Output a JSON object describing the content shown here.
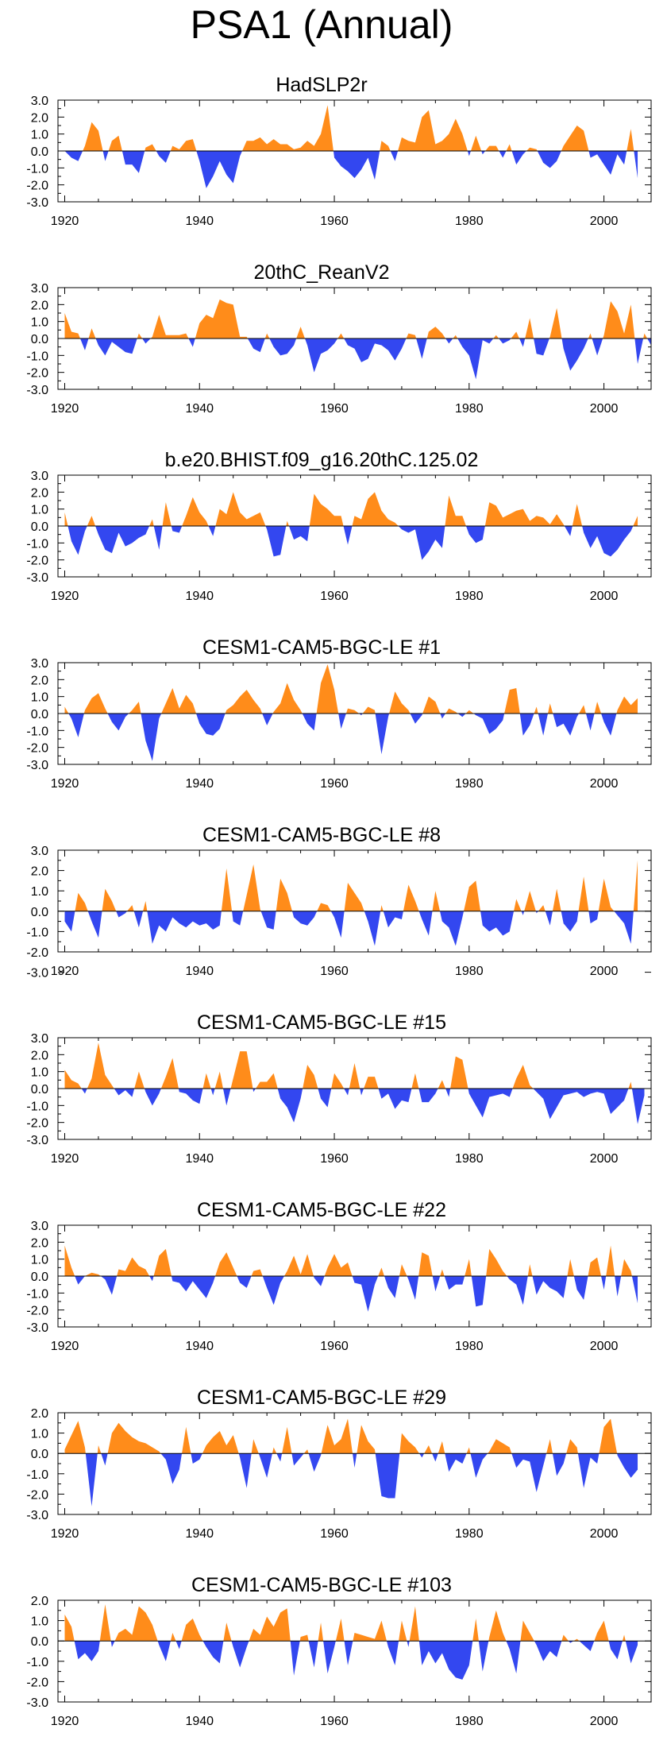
{
  "title": "PSA1 (Annual)",
  "colors": {
    "positive": "#ff8c1a",
    "negative": "#3347f0"
  },
  "chart_data": [
    {
      "type": "area",
      "title": "HadSLP2r",
      "x_start": 1920,
      "x_end": 2005,
      "xticks": [
        "1920",
        "1940",
        "1960",
        "1980",
        "2000"
      ],
      "xlim": [
        1919,
        2007
      ],
      "yticks": [
        "3.0",
        "2.0",
        "1.0",
        "0.0",
        "-1.0",
        "-2.0",
        "-3.0"
      ],
      "ylim": [
        -3.0,
        3.0
      ],
      "values": [
        0,
        -0.4,
        -0.6,
        0.3,
        1.7,
        1.2,
        -0.6,
        0.6,
        0.9,
        -0.8,
        -0.8,
        -1.3,
        0.2,
        0.4,
        -0.3,
        -0.7,
        0.3,
        0.1,
        0.6,
        0.7,
        -0.6,
        -2.2,
        -1.5,
        -0.6,
        -1.4,
        -1.9,
        -0.3,
        0.6,
        0.6,
        0.8,
        0.4,
        0.7,
        0.4,
        0.4,
        0.1,
        0.2,
        0.6,
        0.3,
        1.0,
        2.7,
        -0.4,
        -0.9,
        -1.2,
        -1.6,
        -1.1,
        -0.4,
        -1.7,
        0.6,
        0.3,
        -0.6,
        0.8,
        0.6,
        0.5,
        2.0,
        2.4,
        0.4,
        0.6,
        1.0,
        1.9,
        1.0,
        -0.3,
        0.9,
        -0.2,
        0.3,
        0.3,
        -0.4,
        0.4,
        -0.8,
        -0.2,
        0.2,
        0.1,
        -0.7,
        -1.0,
        -0.6,
        0.3,
        0.9,
        1.5,
        1.2,
        -0.4,
        -0.2,
        -0.8,
        -1.4,
        -0.2,
        -0.8,
        1.3,
        -1.6
      ]
    },
    {
      "type": "area",
      "title": "20thC_ReanV2",
      "x_start": 1920,
      "x_end": 2005,
      "xticks": [
        "1920",
        "1940",
        "1960",
        "1980",
        "2000"
      ],
      "xlim": [
        1919,
        2007
      ],
      "yticks": [
        "3.0",
        "2.0",
        "1.0",
        "0.0",
        "-1.0",
        "-2.0",
        "-3.0"
      ],
      "ylim": [
        -3.0,
        3.0
      ],
      "values": [
        1.5,
        0.4,
        0.3,
        -0.7,
        0.6,
        -0.4,
        -1.0,
        -0.2,
        -0.5,
        -0.8,
        -0.9,
        0.3,
        -0.3,
        0.1,
        1.4,
        0.2,
        0.2,
        0.2,
        0.3,
        -0.5,
        0.9,
        1.4,
        1.2,
        2.3,
        2.1,
        2.0,
        0.1,
        0.1,
        -0.6,
        -0.8,
        0.3,
        -0.5,
        -1.0,
        -0.9,
        -0.4,
        0.7,
        -0.4,
        -2.0,
        -0.9,
        -0.7,
        -0.3,
        0.3,
        -0.4,
        -0.6,
        -1.4,
        -1.2,
        -0.3,
        -0.4,
        -0.7,
        -1.3,
        -0.6,
        0.3,
        0.2,
        -1.2,
        0.4,
        0.7,
        0.3,
        -0.3,
        0.2,
        -0.5,
        -1.0,
        -2.4,
        -0.1,
        -0.3,
        0.2,
        -0.3,
        -0.1,
        0.4,
        -0.5,
        1.2,
        -0.9,
        -1.0,
        0.1,
        1.8,
        -0.6,
        -1.9,
        -1.3,
        -0.6,
        0.3,
        -1.0,
        0.2,
        2.2,
        1.6,
        0.3,
        2.0,
        -1.5,
        0.3,
        -0.4
      ]
    },
    {
      "type": "area",
      "title": "b.e20.BHIST.f09_g16.20thC.125.02",
      "x_start": 1920,
      "x_end": 2005,
      "xticks": [
        "1920",
        "1940",
        "1960",
        "1980",
        "2000"
      ],
      "xlim": [
        1919,
        2007
      ],
      "yticks": [
        "3.0",
        "2.0",
        "1.0",
        "0.0",
        "-1.0",
        "-2.0",
        "-3.0"
      ],
      "ylim": [
        -3.0,
        3.0
      ],
      "values": [
        0.8,
        -0.9,
        -1.7,
        -0.3,
        0.6,
        -0.5,
        -1.4,
        -1.6,
        -0.4,
        -1.2,
        -1.0,
        -0.7,
        -0.5,
        0.4,
        -1.4,
        1.4,
        -0.3,
        -0.4,
        0.6,
        1.7,
        0.8,
        0.3,
        -0.6,
        1.0,
        0.7,
        2.0,
        0.8,
        0.4,
        0.6,
        0.8,
        -0.2,
        -1.8,
        -1.7,
        0.3,
        -0.8,
        -0.6,
        -0.9,
        1.9,
        1.3,
        1.0,
        0.6,
        0.6,
        -1.1,
        0.6,
        0.4,
        1.6,
        2.0,
        0.9,
        0.4,
        0.2,
        -0.2,
        -0.4,
        -0.2,
        -2.0,
        -1.5,
        -0.8,
        -1.3,
        1.8,
        0.6,
        0.6,
        -0.5,
        -1.0,
        -0.8,
        1.4,
        1.2,
        0.5,
        0.7,
        0.9,
        1.0,
        0.3,
        0.6,
        0.5,
        0.1,
        0.7,
        0.1,
        -0.6,
        1.3,
        -0.4,
        -1.3,
        -0.6,
        -1.6,
        -1.8,
        -1.4,
        -0.8,
        -0.3,
        0.6
      ]
    },
    {
      "type": "area",
      "title": "CESM1-CAM5-BGC-LE #1",
      "x_start": 1920,
      "x_end": 2005,
      "xticks": [
        "1920",
        "1940",
        "1960",
        "1980",
        "2000"
      ],
      "xlim": [
        1919,
        2007
      ],
      "yticks": [
        "3.0",
        "2.0",
        "1.0",
        "0.0",
        "-1.0",
        "-2.0",
        "-3.0"
      ],
      "ylim": [
        -3.0,
        3.0
      ],
      "values": [
        0.4,
        -0.3,
        -1.4,
        0.2,
        0.9,
        1.2,
        0.3,
        -0.5,
        -1.0,
        -0.2,
        0.2,
        0.7,
        -1.6,
        -2.8,
        -0.3,
        0.6,
        1.5,
        0.3,
        1.1,
        0.6,
        -0.6,
        -1.2,
        -1.3,
        -0.9,
        0.2,
        0.5,
        1.0,
        1.4,
        0.8,
        0.3,
        -0.7,
        0.1,
        0.6,
        1.8,
        0.8,
        0.2,
        -0.6,
        -1.0,
        1.8,
        2.9,
        1.4,
        -0.9,
        0.3,
        0.2,
        -0.1,
        0.4,
        0.2,
        -2.4,
        -0.2,
        1.3,
        0.6,
        0.2,
        -0.6,
        -0.1,
        1.0,
        0.7,
        -0.3,
        0.3,
        0.1,
        -0.2,
        0.2,
        -0.1,
        -0.3,
        -1.2,
        -0.9,
        -0.4,
        1.4,
        1.5,
        -1.3,
        -0.7,
        0.4,
        -1.3,
        0.6,
        -0.8,
        -0.6,
        -1.3,
        -0.2,
        0.5,
        -1.0,
        0.7,
        -0.5,
        -1.3,
        0.2,
        1.0,
        0.5,
        0.9
      ]
    },
    {
      "type": "area",
      "title": "CESM1-CAM5-BGC-LE #8",
      "x_start": 1920,
      "x_end": 2005,
      "xticks": [
        "1920",
        "1940",
        "1960",
        "1980",
        "2000"
      ],
      "xlim": [
        1919,
        2007
      ],
      "yticks": [
        "3.0",
        "2.0",
        "1.0",
        "0.0",
        "-1.0",
        "-2.0",
        "-3.0"
      ],
      "ylim": [
        -2.0,
        3.0
      ],
      "values": [
        -0.5,
        -1.0,
        0.9,
        0.4,
        -0.5,
        -1.3,
        1.1,
        0.5,
        -0.3,
        -0.1,
        0.3,
        -0.8,
        0.5,
        -1.6,
        -0.7,
        -1.0,
        -0.3,
        -0.6,
        -0.8,
        -0.5,
        -0.7,
        -0.6,
        -0.9,
        -0.7,
        2.1,
        -0.5,
        -0.7,
        0.8,
        2.3,
        0.1,
        -0.8,
        -0.9,
        1.6,
        0.9,
        -0.3,
        -0.6,
        -0.7,
        -0.3,
        0.4,
        0.3,
        -0.3,
        -1.3,
        1.4,
        0.9,
        0.4,
        -0.5,
        -1.7,
        0.3,
        -0.8,
        -0.3,
        -0.4,
        1.3,
        0.5,
        -0.4,
        -1.2,
        1.0,
        -0.5,
        -0.8,
        -1.7,
        -0.3,
        1.2,
        1.5,
        -0.7,
        -1.0,
        -0.8,
        -1.2,
        -1.0,
        0.6,
        -0.2,
        1.0,
        -0.1,
        0.3,
        -0.7,
        1.1,
        -0.6,
        -1.0,
        -0.5,
        1.7,
        -0.6,
        -0.4,
        1.6,
        0.2,
        -0.2,
        -0.6,
        -1.6,
        2.5
      ]
    },
    {
      "type": "area",
      "title": "CESM1-CAM5-BGC-LE #15",
      "x_start": 1920,
      "x_end": 2005,
      "xticks": [
        "1920",
        "1940",
        "1960",
        "1980",
        "2000"
      ],
      "xlim": [
        1919,
        2007
      ],
      "yticks": [
        "3.0",
        "2.0",
        "1.0",
        "0.0",
        "-1.0",
        "-2.0",
        "-3.0"
      ],
      "ylim": [
        -3.0,
        3.0
      ],
      "values": [
        1.1,
        0.5,
        0.3,
        -0.3,
        0.6,
        2.7,
        0.8,
        0.2,
        -0.4,
        -0.1,
        -0.5,
        1.0,
        -0.2,
        -1.0,
        -0.3,
        0.7,
        1.8,
        -0.2,
        -0.3,
        -0.7,
        -0.9,
        0.9,
        -0.4,
        1.0,
        -1.0,
        0.6,
        2.2,
        2.2,
        -0.2,
        0.4,
        0.4,
        0.9,
        -0.6,
        -1.1,
        -2.0,
        -0.6,
        1.4,
        0.8,
        -0.6,
        -1.1,
        0.9,
        0.3,
        -0.4,
        1.5,
        -0.4,
        0.7,
        0.7,
        -0.6,
        -0.3,
        -1.2,
        -0.7,
        -0.8,
        0.9,
        -0.8,
        -0.8,
        -0.3,
        0.5,
        -0.5,
        1.9,
        1.7,
        -0.3,
        -1.0,
        -1.7,
        -0.5,
        -0.4,
        -0.3,
        -0.5,
        0.6,
        1.4,
        0.2,
        -0.2,
        -0.6,
        -1.8,
        -1.1,
        -0.4,
        -0.3,
        -0.2,
        -0.5,
        -0.3,
        -0.2,
        -0.3,
        -1.5,
        -1.1,
        -0.7,
        0.4,
        -2.1,
        -0.4
      ]
    },
    {
      "type": "area",
      "title": "CESM1-CAM5-BGC-LE #22",
      "x_start": 1920,
      "x_end": 2005,
      "xticks": [
        "1920",
        "1940",
        "1960",
        "1980",
        "2000"
      ],
      "xlim": [
        1919,
        2007
      ],
      "yticks": [
        "3.0",
        "2.0",
        "1.0",
        "0.0",
        "-1.0",
        "-2.0",
        "-3.0"
      ],
      "ylim": [
        -3.0,
        3.0
      ],
      "values": [
        1.8,
        0.5,
        -0.5,
        0.0,
        0.2,
        0.1,
        -0.2,
        -1.1,
        0.4,
        0.3,
        1.1,
        0.6,
        0.4,
        -0.3,
        1.2,
        1.6,
        -0.3,
        -0.4,
        -0.9,
        -0.3,
        -0.8,
        -1.3,
        -0.4,
        0.8,
        1.4,
        0.5,
        -0.4,
        -0.7,
        0.3,
        0.4,
        -0.7,
        -1.7,
        -0.4,
        0.3,
        1.2,
        0.1,
        1.3,
        -0.1,
        -0.6,
        0.5,
        1.3,
        0.5,
        0.8,
        -0.4,
        -0.5,
        -2.1,
        -0.5,
        0.5,
        -0.7,
        -1.3,
        0.7,
        -0.2,
        -1.4,
        1.4,
        1.2,
        -0.9,
        0.4,
        -0.8,
        -0.5,
        -0.5,
        1.0,
        -1.8,
        -1.7,
        1.6,
        1.0,
        0.3,
        -0.2,
        -0.5,
        -1.7,
        0.7,
        -1.1,
        -0.3,
        -0.7,
        -0.9,
        -1.3,
        1.0,
        -0.8,
        -1.4,
        0.8,
        1.1,
        -0.8,
        1.8,
        -1.2,
        1.0,
        0.3,
        -1.6
      ]
    },
    {
      "type": "area",
      "title": "CESM1-CAM5-BGC-LE #29",
      "x_start": 1920,
      "x_end": 2005,
      "xticks": [
        "1920",
        "1940",
        "1960",
        "1980",
        "2000"
      ],
      "xlim": [
        1919,
        2007
      ],
      "yticks": [
        "2.0",
        "1.0",
        "0.0",
        "-1.0",
        "-2.0",
        "-3.0"
      ],
      "ylim": [
        -3.0,
        2.0
      ],
      "values": [
        0.2,
        0.9,
        1.6,
        0.3,
        -2.6,
        0.4,
        -0.6,
        1.0,
        1.5,
        1.1,
        0.8,
        0.6,
        0.5,
        0.3,
        0.1,
        -0.3,
        -1.5,
        -0.8,
        1.3,
        -0.5,
        -0.3,
        0.4,
        0.8,
        1.1,
        0.4,
        0.9,
        -0.2,
        -1.7,
        0.7,
        -0.2,
        -1.2,
        0.3,
        -0.4,
        1.3,
        -0.6,
        -0.2,
        0.2,
        -0.9,
        -0.1,
        1.4,
        0.4,
        0.7,
        1.7,
        -0.7,
        1.4,
        0.6,
        0.2,
        -2.1,
        -2.2,
        -2.2,
        1.0,
        0.6,
        0.3,
        -0.2,
        0.4,
        -0.4,
        0.6,
        -0.9,
        -0.3,
        -0.5,
        0.3,
        -1.2,
        -0.3,
        0.1,
        0.7,
        0.5,
        0.3,
        -0.7,
        -0.3,
        -0.4,
        -1.9,
        -0.6,
        0.7,
        -1.1,
        -0.5,
        0.7,
        0.3,
        -1.7,
        -0.2,
        -0.5,
        1.3,
        1.7,
        -0.1,
        -0.7,
        -1.2,
        -0.8
      ]
    },
    {
      "type": "area",
      "title": "CESM1-CAM5-BGC-LE #103",
      "x_start": 1920,
      "x_end": 2005,
      "xticks": [
        "1920",
        "1940",
        "1960",
        "1980",
        "2000"
      ],
      "xlim": [
        1919,
        2007
      ],
      "yticks": [
        "2.0",
        "1.0",
        "0.0",
        "-1.0",
        "-2.0",
        "-3.0"
      ],
      "ylim": [
        -3.0,
        2.0
      ],
      "values": [
        1.3,
        0.7,
        -0.9,
        -0.6,
        -1.0,
        -0.5,
        1.8,
        -0.3,
        0.4,
        0.6,
        0.3,
        1.7,
        1.4,
        0.8,
        -0.2,
        -1.0,
        0.4,
        -0.4,
        0.8,
        1.1,
        0.3,
        -0.3,
        -0.8,
        -1.1,
        0.9,
        -0.3,
        -1.3,
        -0.3,
        0.6,
        0.3,
        1.2,
        0.7,
        1.4,
        1.6,
        -1.7,
        0.2,
        0.3,
        -1.3,
        0.9,
        -1.6,
        -0.3,
        1.1,
        -1.2,
        0.4,
        0.3,
        0.2,
        0.1,
        1.0,
        -0.3,
        -1.2,
        1.0,
        -0.3,
        1.7,
        -1.2,
        -0.5,
        -1.1,
        -0.6,
        -1.4,
        -1.8,
        -1.9,
        -1.2,
        1.1,
        -1.5,
        0.2,
        1.5,
        0.4,
        -0.4,
        -1.6,
        1.0,
        0.4,
        -0.2,
        -1.0,
        -0.5,
        -0.8,
        0.3,
        -0.1,
        0.1,
        -0.2,
        -0.5,
        0.4,
        1.0,
        -0.4,
        -0.9,
        0.3,
        -1.1,
        -0.2
      ]
    }
  ]
}
